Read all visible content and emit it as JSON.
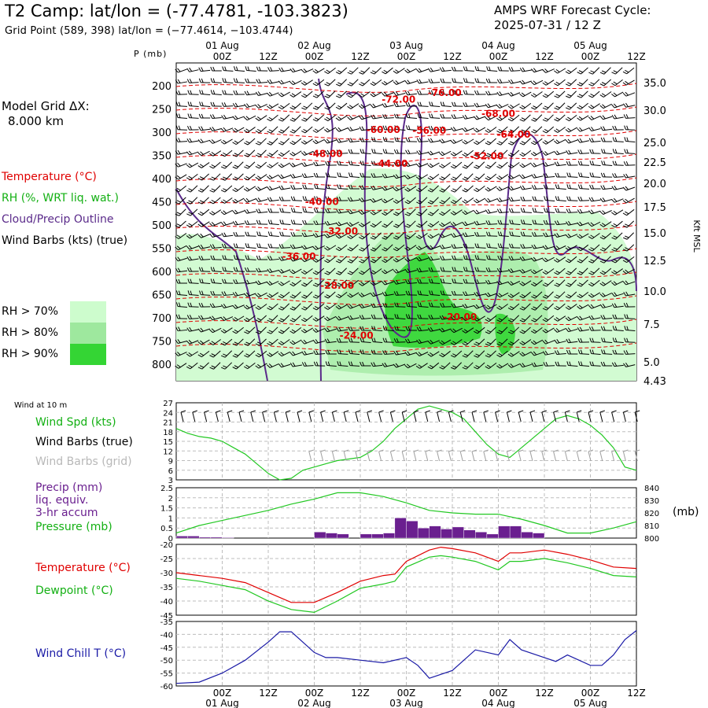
{
  "header": {
    "title": "T2 Camp:  lat/lon = (-77.4781, -103.3823)",
    "subtitle": "Grid Point (589, 398) lat/lon = (−77.4614, −103.4744)",
    "cycle_line1": "AMPS WRF Forecast Cycle:",
    "cycle_line2": "2025-07-31 / 12  Z"
  },
  "left_panel": {
    "model_grid_line1": "Model Grid ΔX:",
    "model_grid_line2": "8.000 km",
    "legend": {
      "temperature": "Temperature (°C)",
      "rh": "RH (%, WRT liq. wat.)",
      "cloud": "Cloud/Precip Outline",
      "wind": "Wind Barbs (kts) (true)"
    },
    "rh_key": [
      {
        "label": "RH > 70%",
        "color": "#cdfccd"
      },
      {
        "label": "RH > 80%",
        "color": "#9ee89e"
      },
      {
        "label": "RH > 90%",
        "color": "#34d534"
      }
    ],
    "p_axis_label": "P (mb)",
    "kft_label": "Kft MSL"
  },
  "panel_labels": {
    "wind_at": "Wind at 10 m",
    "wind_spd": "Wind Spd (kts)",
    "wind_barbs_true": "Wind Barbs (true)",
    "wind_barbs_grid": "Wind Barbs (grid)",
    "precip_1": "Precip (mm)",
    "precip_2": "liq. equiv.",
    "precip_3": "3-hr accum",
    "pressure": "Pressure (mb)",
    "pressure_unit": "(mb)",
    "temperature": "Temperature (°C)",
    "dewpoint": "Dewpoint (°C)",
    "windchill": "Wind Chill T (°C)"
  },
  "colors": {
    "temperature": "#e00000",
    "green": "#22c822",
    "cloud": "#5a2a8a",
    "precip": "#6a1f8f",
    "windchill": "#1a1aa6",
    "grid_barb": "#a0a0a0"
  },
  "chart_data": [
    {
      "type": "heatmap",
      "name": "cross-section",
      "x_ticks_top": {
        "date_labels": [
          "01 Aug",
          "02 Aug",
          "03 Aug",
          "04 Aug",
          "05 Aug"
        ],
        "hour_labels": [
          "00Z",
          "12Z",
          "00Z",
          "12Z",
          "00Z",
          "12Z",
          "00Z",
          "12Z",
          "00Z",
          "12Z"
        ]
      },
      "pressure_levels": [
        200,
        250,
        300,
        350,
        400,
        450,
        500,
        550,
        600,
        650,
        700,
        750,
        800
      ],
      "kft_ticks": [
        "35.0",
        "30.0",
        "25.0",
        "22.5",
        "20.0",
        "17.5",
        "15.0",
        "12.5",
        "10.0",
        "7.5",
        "5.0",
        "4.43"
      ],
      "temperature_contour_labels": [
        {
          "text": "-76.00",
          "hour": 70,
          "p": 220
        },
        {
          "text": "-72.00",
          "hour": 58,
          "p": 235
        },
        {
          "text": "-68.00",
          "hour": 84,
          "p": 265
        },
        {
          "text": "-64.00",
          "hour": 88,
          "p": 310
        },
        {
          "text": "-60.00",
          "hour": 54,
          "p": 300
        },
        {
          "text": "-56.00",
          "hour": 66,
          "p": 302
        },
        {
          "text": "-52.00",
          "hour": 81,
          "p": 357
        },
        {
          "text": "-48.00",
          "hour": 39,
          "p": 352
        },
        {
          "text": "-44.00",
          "hour": 56,
          "p": 373
        },
        {
          "text": "-40.00",
          "hour": 38,
          "p": 455
        },
        {
          "text": "-32.00",
          "hour": 43,
          "p": 519
        },
        {
          "text": "-36.00",
          "hour": 32,
          "p": 573
        },
        {
          "text": "-28.00",
          "hour": 42,
          "p": 636
        },
        {
          "text": "-20.00",
          "hour": 74,
          "p": 703
        },
        {
          "text": "-24.00",
          "hour": 47,
          "p": 743
        }
      ]
    },
    {
      "type": "line",
      "name": "wind-speed",
      "ylabel": "Wind Spd (kts)",
      "ylim": [
        3,
        27
      ],
      "yticks": [
        3,
        6,
        9,
        12,
        15,
        18,
        21,
        24,
        27
      ],
      "x_hours": [
        0,
        3,
        6,
        9,
        12,
        15,
        18,
        21,
        24,
        27,
        30,
        33,
        36,
        39,
        42,
        45,
        48,
        51,
        54,
        57,
        60,
        63,
        66,
        69,
        72,
        75,
        78,
        81,
        84,
        87,
        90,
        93,
        96,
        99,
        102,
        105,
        108,
        111,
        114,
        117,
        120
      ],
      "series": [
        {
          "name": "Wind Spd (kts)",
          "values": [
            19,
            17.5,
            16.5,
            16,
            15,
            13,
            11,
            8,
            5,
            3,
            3.5,
            6,
            7,
            8,
            9,
            9.5,
            10,
            12,
            15,
            19,
            22,
            25,
            26,
            25,
            24,
            22,
            18,
            14,
            11,
            10,
            13,
            16,
            19,
            22,
            23,
            22,
            20,
            17,
            13,
            7,
            6
          ]
        }
      ]
    },
    {
      "type": "bar",
      "name": "precip-pressure",
      "ylabel_left": "Precip (mm)",
      "ylim_left": [
        0,
        2.5
      ],
      "yticks_left": [
        0,
        0.5,
        1,
        1.5,
        2,
        2.5
      ],
      "ylabel_right": "Pressure (mb)",
      "ylim_right": [
        800,
        840
      ],
      "yticks_right": [
        800,
        810,
        820,
        830,
        840
      ],
      "precip_bars": [
        {
          "hour": 3,
          "value": 0.1
        },
        {
          "hour": 6,
          "value": 0.1
        },
        {
          "hour": 9,
          "value": 0.05
        },
        {
          "hour": 12,
          "value": 0.05
        },
        {
          "hour": 15,
          "value": 0.03
        },
        {
          "hour": 39,
          "value": 0.3
        },
        {
          "hour": 42,
          "value": 0.25
        },
        {
          "hour": 45,
          "value": 0.2
        },
        {
          "hour": 51,
          "value": 0.2
        },
        {
          "hour": 54,
          "value": 0.2
        },
        {
          "hour": 57,
          "value": 0.25
        },
        {
          "hour": 60,
          "value": 1.0
        },
        {
          "hour": 63,
          "value": 0.85
        },
        {
          "hour": 66,
          "value": 0.5
        },
        {
          "hour": 69,
          "value": 0.6
        },
        {
          "hour": 72,
          "value": 0.45
        },
        {
          "hour": 75,
          "value": 0.55
        },
        {
          "hour": 78,
          "value": 0.4
        },
        {
          "hour": 81,
          "value": 0.3
        },
        {
          "hour": 84,
          "value": 0.2
        },
        {
          "hour": 87,
          "value": 0.6
        },
        {
          "hour": 90,
          "value": 0.6
        },
        {
          "hour": 93,
          "value": 0.3
        },
        {
          "hour": 96,
          "value": 0.25
        }
      ],
      "pressure_hours": [
        0,
        6,
        12,
        18,
        24,
        30,
        36,
        42,
        48,
        54,
        60,
        66,
        72,
        78,
        84,
        90,
        96,
        102,
        108,
        114,
        120
      ],
      "pressure_values": [
        804,
        810,
        814,
        818,
        822,
        827,
        831,
        836,
        836,
        833,
        828,
        822,
        820,
        819,
        819,
        815,
        810,
        804,
        804,
        808,
        813
      ]
    },
    {
      "type": "line",
      "name": "temperature-dewpoint",
      "ylim": [
        -45,
        -20
      ],
      "yticks": [
        -45,
        -40,
        -35,
        -30,
        -25,
        -20
      ],
      "x_hours": [
        0,
        6,
        12,
        18,
        24,
        30,
        36,
        42,
        48,
        54,
        57,
        60,
        66,
        69,
        72,
        78,
        84,
        87,
        90,
        96,
        102,
        108,
        114,
        120
      ],
      "series": [
        {
          "name": "Temperature (°C)",
          "values": [
            -30,
            -31,
            -32,
            -33.5,
            -37,
            -40.5,
            -40.5,
            -37,
            -33,
            -31,
            -30.5,
            -26,
            -22,
            -21,
            -21.5,
            -23,
            -26,
            -23,
            -23,
            -22,
            -23.5,
            -25.5,
            -28,
            -28.5
          ]
        },
        {
          "name": "Dewpoint (°C)",
          "values": [
            -32,
            -33,
            -34.5,
            -36,
            -40,
            -43,
            -44,
            -40,
            -35.5,
            -34,
            -33,
            -28,
            -24.5,
            -24,
            -24.5,
            -26,
            -29,
            -26,
            -26,
            -25,
            -26.5,
            -28.5,
            -31,
            -31.5
          ]
        }
      ]
    },
    {
      "type": "line",
      "name": "wind-chill",
      "ylim": [
        -60,
        -35
      ],
      "yticks": [
        -60,
        -55,
        -50,
        -45,
        -40,
        -35
      ],
      "x_hours": [
        0,
        6,
        12,
        18,
        24,
        27,
        30,
        33,
        36,
        39,
        42,
        48,
        54,
        60,
        63,
        66,
        72,
        78,
        84,
        87,
        90,
        96,
        99,
        102,
        108,
        111,
        114,
        117,
        120
      ],
      "series": [
        {
          "name": "Wind Chill T (°C)",
          "values": [
            -59,
            -58.5,
            -55,
            -50,
            -43,
            -39,
            -39,
            -43,
            -47,
            -49,
            -49,
            -50,
            -51,
            -49,
            -52,
            -57,
            -54,
            -46,
            -48,
            -42,
            -46,
            -49,
            -50.5,
            -48,
            -52,
            -52,
            -48,
            -42,
            -38.5
          ]
        }
      ]
    },
    {
      "type": "table",
      "name": "bottom-axis",
      "hour_labels": [
        "00Z",
        "12Z",
        "00Z",
        "12Z",
        "00Z",
        "12Z",
        "00Z",
        "12Z",
        "00Z",
        "12Z"
      ],
      "date_labels": [
        "01 Aug",
        "02 Aug",
        "03 Aug",
        "04 Aug",
        "05 Aug"
      ]
    }
  ]
}
